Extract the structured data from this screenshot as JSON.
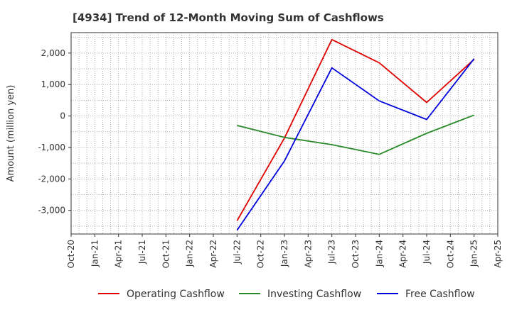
{
  "chart_data": {
    "type": "line",
    "title": "[4934]  Trend of 12-Month Moving Sum of Cashflows",
    "xlabel": "",
    "ylabel": "Amount (million yen)",
    "x_ticks": [
      "Oct-20",
      "Jan-21",
      "Apr-21",
      "Jul-21",
      "Oct-21",
      "Jan-22",
      "Apr-22",
      "Jul-22",
      "Oct-22",
      "Jan-23",
      "Apr-23",
      "Jul-23",
      "Oct-23",
      "Jan-24",
      "Apr-24",
      "Jul-24",
      "Oct-24",
      "Jan-25",
      "Apr-25"
    ],
    "y_ticks": [
      2000,
      1000,
      0,
      -1000,
      -2000,
      -3000
    ],
    "y_tick_labels": [
      "2,000",
      "1,000",
      "0",
      "-1,000",
      "-2,000",
      "-3,000"
    ],
    "ylim": [
      -3750,
      2650
    ],
    "grid": true,
    "legend_position": "bottom",
    "series": [
      {
        "name": "Operating Cashflow",
        "color": "#e00000",
        "x": [
          "Jul-22",
          "Jan-23",
          "Jul-23",
          "Jan-24",
          "Jul-24",
          "Jan-25"
        ],
        "values": [
          -3330,
          -700,
          2430,
          1690,
          430,
          1800
        ]
      },
      {
        "name": "Investing Cashflow",
        "color": "#2a8a2a",
        "x": [
          "Jul-22",
          "Jan-23",
          "Jul-23",
          "Jan-24",
          "Jul-24",
          "Jan-25"
        ],
        "values": [
          -300,
          -680,
          -910,
          -1220,
          -550,
          30
        ]
      },
      {
        "name": "Free Cashflow",
        "color": "#0000dd",
        "x": [
          "Jul-22",
          "Jan-23",
          "Jul-23",
          "Jan-24",
          "Jul-24",
          "Jan-25"
        ],
        "values": [
          -3630,
          -1430,
          1530,
          480,
          -110,
          1820
        ]
      }
    ]
  }
}
